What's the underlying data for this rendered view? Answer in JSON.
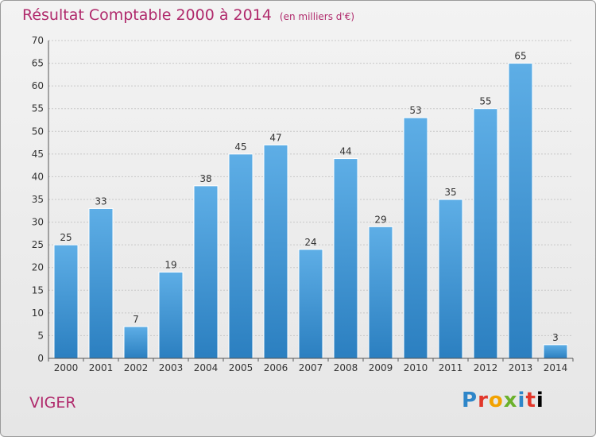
{
  "title": "Résultat Comptable 2000 à 2014",
  "subtitle": "(en milliers d'€)",
  "footer": {
    "commune": "VIGER",
    "brand_letters": [
      "P",
      "r",
      "o",
      "x",
      "i",
      "t",
      "i"
    ]
  },
  "colors": {
    "title": "#b02a6c",
    "bar_top": "#5eaee6",
    "bar_bottom": "#2b7fc0"
  },
  "chart_data": {
    "type": "bar",
    "title": "Résultat Comptable 2000 à 2014",
    "ylabel": "(en milliers d'€)",
    "xlabel": "",
    "categories": [
      "2000",
      "2001",
      "2002",
      "2003",
      "2004",
      "2005",
      "2006",
      "2007",
      "2008",
      "2009",
      "2010",
      "2011",
      "2012",
      "2013",
      "2014"
    ],
    "values": [
      25,
      33,
      7,
      19,
      38,
      45,
      47,
      24,
      44,
      29,
      53,
      35,
      55,
      65,
      3
    ],
    "ylim": [
      0,
      70
    ],
    "yticks": [
      0,
      5,
      10,
      15,
      20,
      25,
      30,
      35,
      40,
      45,
      50,
      55,
      60,
      65,
      70
    ],
    "grid": true
  }
}
